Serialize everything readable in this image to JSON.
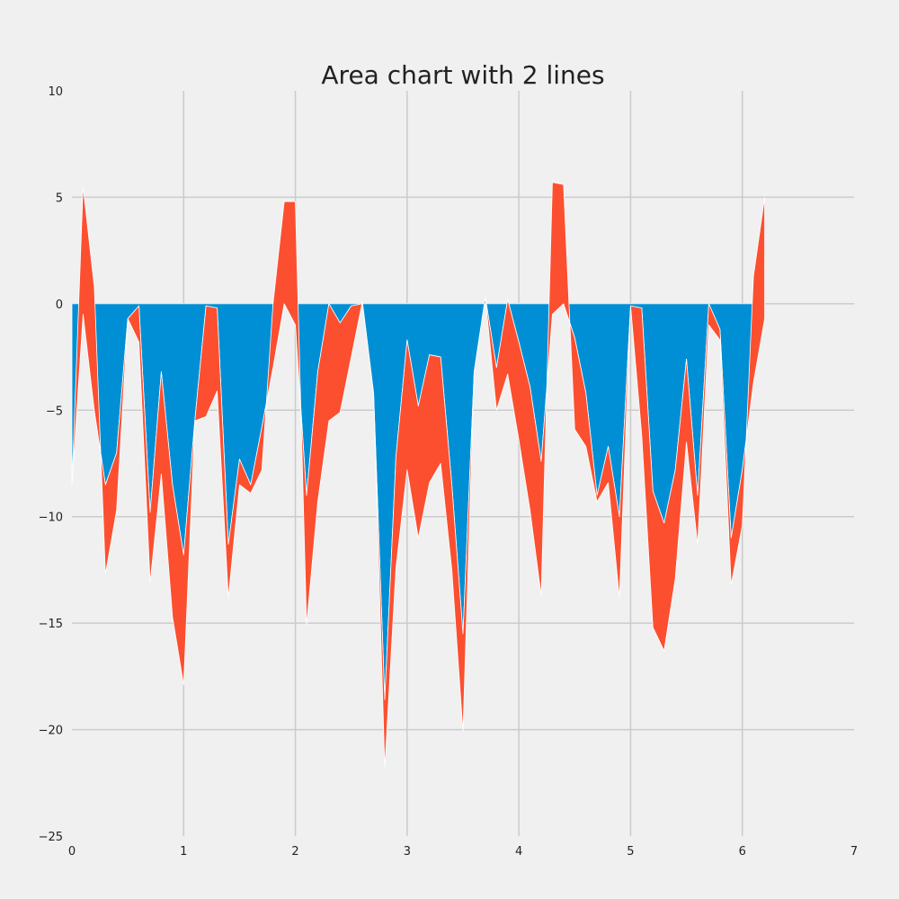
{
  "chart_data": {
    "type": "area",
    "title": "Area chart with 2 lines",
    "xlabel": "",
    "ylabel": "",
    "xlim": [
      0,
      7
    ],
    "ylim": [
      -25,
      10
    ],
    "xticks": [
      0,
      1,
      2,
      3,
      4,
      5,
      6,
      7
    ],
    "yticks": [
      10,
      5,
      0,
      -5,
      -10,
      -15,
      -20,
      -25
    ],
    "grid": true,
    "stacked": true,
    "x": [
      0.0,
      0.1,
      0.2,
      0.3,
      0.4,
      0.5,
      0.6,
      0.7,
      0.8,
      0.9,
      1.0,
      1.1,
      1.2,
      1.3,
      1.4,
      1.5,
      1.6,
      1.7,
      1.8,
      1.9,
      2.0,
      2.1,
      2.2,
      2.3,
      2.4,
      2.5,
      2.6,
      2.7,
      2.8,
      2.9,
      3.0,
      3.1,
      3.2,
      3.3,
      3.4,
      3.5,
      3.6,
      3.7,
      3.8,
      3.9,
      4.0,
      4.1,
      4.2,
      4.3,
      4.4,
      4.5,
      4.6,
      4.7,
      4.8,
      4.9,
      5.0,
      5.1,
      5.2,
      5.3,
      5.4,
      5.5,
      5.6,
      5.7,
      5.8,
      5.9,
      6.0,
      6.1,
      6.2
    ],
    "series": [
      {
        "color": "#008fd5",
        "values": [
          -8.5,
          -0.5,
          -5.0,
          -8.5,
          -7.0,
          -0.7,
          -0.1,
          -9.8,
          -3.2,
          -8.5,
          -11.8,
          -5.5,
          -0.1,
          -0.2,
          -11.3,
          -7.3,
          -8.5,
          -5.8,
          -3.0,
          0.0,
          -1.0,
          -9.0,
          -3.2,
          0.0,
          -0.9,
          -0.1,
          0.0,
          -4.2,
          -18.6,
          -7.2,
          -1.7,
          -4.8,
          -2.4,
          -2.5,
          -8.5,
          -15.5,
          -3.2,
          0.3,
          -3.0,
          0.2,
          -1.8,
          -3.9,
          -7.4,
          -0.5,
          0.0,
          -1.6,
          -4.2,
          -9.0,
          -6.7,
          -10.0,
          -0.1,
          -0.2,
          -8.8,
          -10.3,
          -7.8,
          -2.6,
          -9.0,
          0.0,
          -1.2,
          -11.0,
          -7.8,
          -3.7,
          -0.7
        ]
      },
      {
        "color": "#fc4f30",
        "values": [
          0.0,
          6.0,
          5.8,
          -4.2,
          -2.7,
          0.0,
          -1.7,
          -3.3,
          -4.8,
          -6.2,
          -6.1,
          0.0,
          -5.2,
          -3.9,
          -2.5,
          -1.2,
          -0.4,
          -2.0,
          3.0,
          4.8,
          5.8,
          -6.1,
          -6.1,
          -5.5,
          -4.2,
          -2.4,
          0.1,
          0.0,
          -3.2,
          -5.2,
          -6.1,
          -6.2,
          -6.0,
          -5.0,
          -4.0,
          -4.6,
          0.0,
          0.0,
          -2.0,
          -3.5,
          -4.6,
          -5.8,
          -6.3,
          6.2,
          5.6,
          -4.3,
          -2.5,
          -0.3,
          -1.7,
          -3.8,
          0.0,
          -6.0,
          -6.4,
          -6.0,
          -5.1,
          -3.9,
          -2.3,
          -1.0,
          -0.5,
          -2.2,
          -2.6,
          5.0,
          5.7
        ]
      }
    ]
  }
}
